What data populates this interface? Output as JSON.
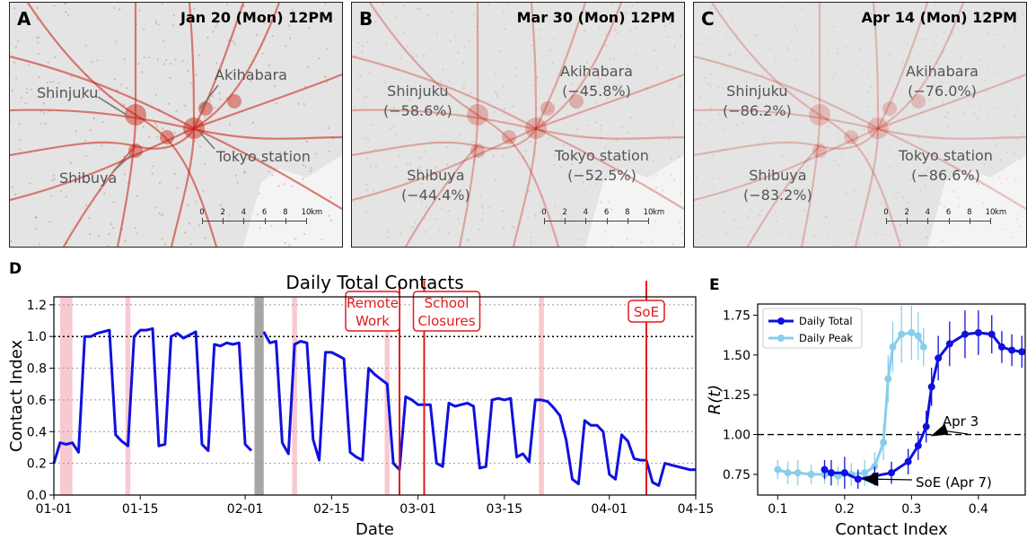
{
  "maps": [
    {
      "letter": "A",
      "date": "Jan 20 (Mon) 12PM",
      "places": [
        {
          "name": "Shinjuku",
          "change": ""
        },
        {
          "name": "Akihabara",
          "change": ""
        },
        {
          "name": "Tokyo station",
          "change": ""
        },
        {
          "name": "Shibuya",
          "change": ""
        }
      ]
    },
    {
      "letter": "B",
      "date": "Mar 30 (Mon) 12PM",
      "places": [
        {
          "name": "Shinjuku",
          "change": "(−58.6%)"
        },
        {
          "name": "Akihabara",
          "change": "(−45.8%)"
        },
        {
          "name": "Tokyo station",
          "change": "(−52.5%)"
        },
        {
          "name": "Shibuya",
          "change": "(−44.4%)"
        }
      ]
    },
    {
      "letter": "C",
      "date": "Apr 14 (Mon) 12PM",
      "places": [
        {
          "name": "Shinjuku",
          "change": "(−86.2%)"
        },
        {
          "name": "Akihabara",
          "change": "(−76.0%)"
        },
        {
          "name": "Tokyo station",
          "change": "(−86.6%)"
        },
        {
          "name": "Shibuya",
          "change": "(−83.2%)"
        }
      ]
    }
  ],
  "scale_bar": {
    "ticks": [
      "0",
      "2",
      "4",
      "6",
      "8",
      "10"
    ],
    "unit": "km"
  },
  "colors": {
    "map_bg": "#e4e4e4",
    "map_heat": "#c81e0c",
    "event_line": "#e31a1c",
    "daily_total": "#1010e0",
    "daily_peak": "#87ceeb",
    "weekend_shade": "#f8c9d0",
    "holiday_shade": "#a6a6a6"
  },
  "chart_data": [
    {
      "letter": "D",
      "type": "line",
      "title": "Daily Total Contacts",
      "xlabel": "Date",
      "ylabel": "Contact Index",
      "x_ticks": [
        "01-01",
        "01-15",
        "02-01",
        "02-15",
        "03-01",
        "03-15",
        "04-01",
        "04-15"
      ],
      "x_tick_days": [
        1,
        15,
        32,
        46,
        60,
        74,
        91,
        105
      ],
      "xlim_days": [
        1,
        105
      ],
      "ylim": [
        0,
        1.25
      ],
      "y_ticks": [
        "0.0",
        "0.2",
        "0.4",
        "0.6",
        "0.8",
        "1.0",
        "1.2"
      ],
      "reference_line": 1.0,
      "grid": "horizontal dotted",
      "series": [
        {
          "name": "",
          "days": [
            1,
            2,
            3,
            4,
            5,
            6,
            7,
            8,
            9,
            10,
            11,
            12,
            13,
            14,
            15,
            16,
            17,
            18,
            19,
            20,
            21,
            22,
            23,
            24,
            25,
            26,
            27,
            28,
            29,
            30,
            31,
            32,
            33,
            35,
            36,
            37,
            38,
            39,
            40,
            41,
            42,
            43,
            44,
            45,
            46,
            47,
            48,
            49,
            50,
            51,
            52,
            53,
            54,
            55,
            56,
            57,
            58,
            59,
            60,
            61,
            62,
            63,
            64,
            65,
            66,
            67,
            68,
            69,
            70,
            71,
            72,
            73,
            74,
            75,
            76,
            77,
            78,
            79,
            80,
            81,
            82,
            83,
            84,
            85,
            86,
            87,
            88,
            89,
            90,
            91,
            92,
            93,
            94,
            95,
            96,
            97,
            98,
            99,
            100,
            101,
            102,
            103,
            104,
            105
          ],
          "values": [
            0.2,
            0.33,
            0.32,
            0.33,
            0.27,
            1.0,
            1.0,
            1.02,
            1.03,
            1.04,
            0.38,
            0.34,
            0.31,
            1.0,
            1.04,
            1.04,
            1.05,
            0.31,
            0.32,
            1.0,
            1.02,
            0.99,
            1.01,
            1.03,
            0.32,
            0.28,
            0.95,
            0.94,
            0.96,
            0.95,
            0.96,
            0.32,
            0.28,
            1.03,
            0.96,
            0.97,
            0.33,
            0.26,
            0.95,
            0.97,
            0.96,
            0.35,
            0.22,
            0.9,
            0.9,
            0.88,
            0.86,
            0.27,
            0.24,
            0.22,
            0.8,
            0.76,
            0.73,
            0.7,
            0.2,
            0.16,
            0.62,
            0.6,
            0.57,
            0.57,
            0.57,
            0.2,
            0.18,
            0.58,
            0.56,
            0.57,
            0.58,
            0.56,
            0.17,
            0.18,
            0.6,
            0.61,
            0.6,
            0.61,
            0.24,
            0.26,
            0.21,
            0.6,
            0.6,
            0.59,
            0.55,
            0.5,
            0.35,
            0.1,
            0.07,
            0.47,
            0.44,
            0.44,
            0.4,
            0.13,
            0.1,
            0.38,
            0.34,
            0.23,
            0.22,
            0.22,
            0.08,
            0.06,
            0.2,
            0.19,
            0.18,
            0.17,
            0.16,
            0.16
          ]
        }
      ],
      "weekend_shading_days": [
        [
          2,
          4
        ],
        [
          12.6,
          13.4
        ],
        [
          39.6,
          40.4
        ],
        [
          54.6,
          55.4
        ],
        [
          79.6,
          80.4
        ]
      ],
      "holiday_shading_days": [
        [
          33.5,
          35
        ]
      ],
      "events": [
        {
          "label": [
            "Remote",
            "Work"
          ],
          "day": 57
        },
        {
          "label": [
            "School",
            "Closures"
          ],
          "day": 61
        },
        {
          "label": [
            "SoE"
          ],
          "day": 97
        }
      ]
    },
    {
      "letter": "E",
      "type": "line",
      "title": "",
      "xlabel": "Contact Index",
      "ylabel": "R(t)",
      "xlim": [
        0.07,
        0.47
      ],
      "ylim": [
        0.62,
        1.82
      ],
      "x_ticks": [
        0.1,
        0.2,
        0.3,
        0.4
      ],
      "y_ticks": [
        "0.75",
        "1.00",
        "1.25",
        "1.50",
        "1.75"
      ],
      "reference_line": 1.0,
      "legend": "top-left",
      "series": [
        {
          "name": "Daily Total",
          "points": [
            [
              0.17,
              0.78
            ],
            [
              0.18,
              0.76
            ],
            [
              0.2,
              0.76
            ],
            [
              0.22,
              0.72
            ],
            [
              0.245,
              0.74
            ],
            [
              0.27,
              0.76
            ],
            [
              0.295,
              0.83
            ],
            [
              0.31,
              0.93
            ],
            [
              0.322,
              1.05
            ],
            [
              0.33,
              1.3
            ],
            [
              0.34,
              1.48
            ],
            [
              0.357,
              1.57
            ],
            [
              0.38,
              1.63
            ],
            [
              0.4,
              1.64
            ],
            [
              0.42,
              1.63
            ],
            [
              0.435,
              1.55
            ],
            [
              0.45,
              1.53
            ],
            [
              0.465,
              1.52
            ]
          ],
          "errors": [
            0.06,
            0.08,
            0.1,
            0.06,
            0.06,
            0.07,
            0.08,
            0.09,
            0.1,
            0.12,
            0.14,
            0.14,
            0.15,
            0.14,
            0.12,
            0.1,
            0.1,
            0.1
          ]
        },
        {
          "name": "Daily Peak",
          "points": [
            [
              0.1,
              0.78
            ],
            [
              0.115,
              0.76
            ],
            [
              0.13,
              0.76
            ],
            [
              0.15,
              0.75
            ],
            [
              0.17,
              0.75
            ],
            [
              0.19,
              0.74
            ],
            [
              0.21,
              0.75
            ],
            [
              0.23,
              0.76
            ],
            [
              0.245,
              0.8
            ],
            [
              0.258,
              0.95
            ],
            [
              0.265,
              1.35
            ],
            [
              0.272,
              1.55
            ],
            [
              0.285,
              1.63
            ],
            [
              0.3,
              1.64
            ],
            [
              0.31,
              1.62
            ],
            [
              0.318,
              1.55
            ]
          ],
          "errors": [
            0.06,
            0.07,
            0.08,
            0.06,
            0.06,
            0.06,
            0.07,
            0.08,
            0.09,
            0.11,
            0.15,
            0.16,
            0.18,
            0.17,
            0.15,
            0.12
          ]
        }
      ],
      "annotations": [
        {
          "text": "Apr 3",
          "point": [
            0.323,
            1.0
          ]
        },
        {
          "text": "SoE (Apr 7)",
          "point": [
            0.222,
            0.72
          ]
        }
      ]
    }
  ]
}
